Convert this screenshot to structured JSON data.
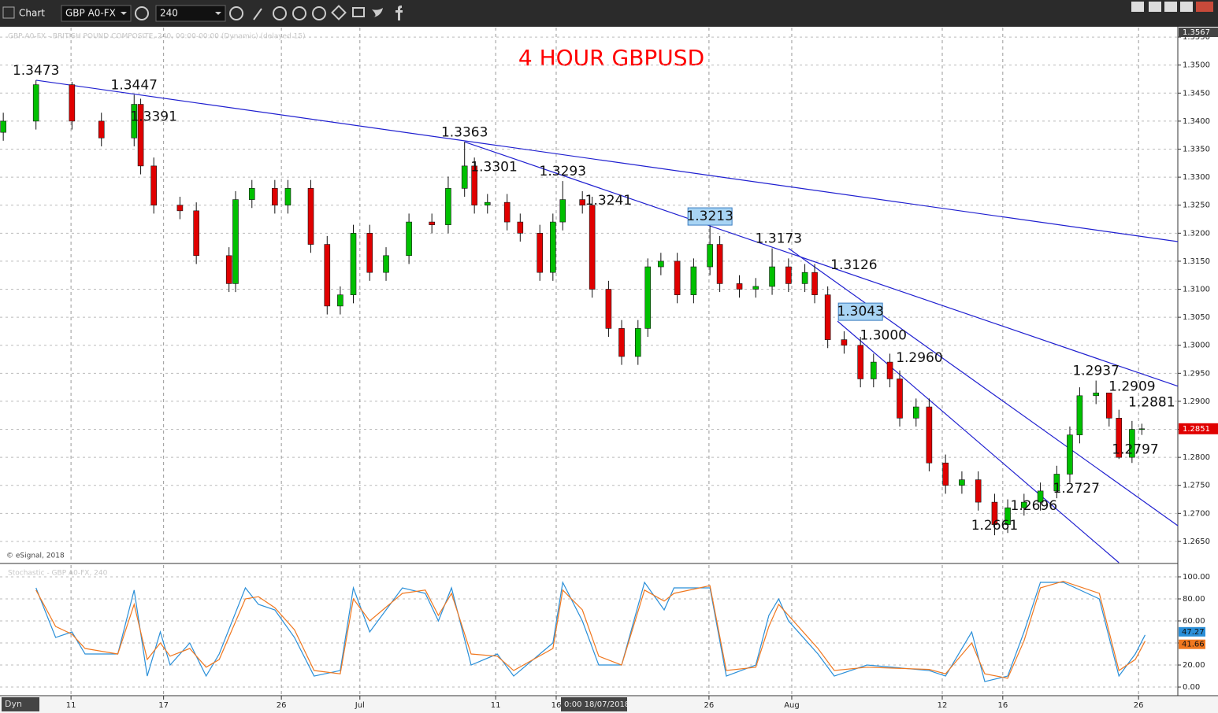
{
  "toolbar": {
    "app": "Chart",
    "symbol": "GBP A0-FX",
    "interval": "240",
    "status": "Dyn"
  },
  "crosshair_label": "0:00 18/07/2018",
  "chart_data": [
    {
      "type": "candlestick",
      "title": "4 HOUR GBPUSD",
      "legend_text": "GBP A0-FX - BRITISH POUND COMPOSITE, 240, 00:00-00:00 (Dynamic) (delayed 15)",
      "copyright": "© eSignal, 2018",
      "up_color": "#00c000",
      "down_color": "#e00000",
      "x": [
        1,
        11,
        22,
        31,
        41,
        43,
        47,
        55,
        60,
        70,
        72,
        77,
        84,
        88,
        95,
        100,
        104,
        108,
        113,
        118,
        125,
        132,
        137,
        142,
        145,
        149,
        155,
        159,
        165,
        169,
        172,
        178,
        181,
        186,
        190,
        195,
        198,
        202,
        207,
        212,
        217,
        220,
        226,
        231,
        236,
        241,
        246,
        249,
        253,
        258,
        263,
        267,
        272,
        275,
        280,
        284,
        289,
        294,
        299,
        304,
        308,
        313,
        318,
        323,
        327,
        330,
        335,
        339,
        342,
        346,
        349
      ],
      "open": [
        1.338,
        1.34,
        1.3465,
        1.34,
        1.337,
        1.343,
        1.332,
        1.325,
        1.324,
        1.316,
        1.311,
        1.326,
        1.328,
        1.325,
        1.328,
        1.318,
        1.307,
        1.309,
        1.32,
        1.313,
        1.316,
        1.322,
        1.3215,
        1.328,
        1.332,
        1.325,
        1.3255,
        1.322,
        1.32,
        1.313,
        1.322,
        1.326,
        1.325,
        1.31,
        1.303,
        1.298,
        1.303,
        1.314,
        1.315,
        1.309,
        1.314,
        1.318,
        1.311,
        1.31,
        1.3105,
        1.314,
        1.311,
        1.313,
        1.309,
        1.301,
        1.3,
        1.294,
        1.297,
        1.294,
        1.287,
        1.289,
        1.279,
        1.275,
        1.276,
        1.272,
        1.268,
        1.271,
        1.272,
        1.274,
        1.277,
        1.284,
        1.291,
        1.2915,
        1.287,
        1.28,
        1.285
      ],
      "high": [
        1.3415,
        1.3473,
        1.347,
        1.3415,
        1.3447,
        1.344,
        1.3335,
        1.3265,
        1.3255,
        1.3175,
        1.3275,
        1.3295,
        1.3295,
        1.3295,
        1.3295,
        1.3195,
        1.3105,
        1.3215,
        1.3215,
        1.3175,
        1.3235,
        1.3235,
        1.3301,
        1.3363,
        1.3335,
        1.327,
        1.327,
        1.3235,
        1.3215,
        1.3235,
        1.3293,
        1.3275,
        1.3265,
        1.3115,
        1.3045,
        1.3045,
        1.3155,
        1.3165,
        1.3165,
        1.3155,
        1.3213,
        1.3195,
        1.3125,
        1.312,
        1.3173,
        1.3155,
        1.3145,
        1.3145,
        1.3105,
        1.3025,
        1.3015,
        1.2985,
        1.2985,
        1.2955,
        1.2905,
        1.2905,
        1.2805,
        1.2775,
        1.2775,
        1.2735,
        1.2725,
        1.2735,
        1.2755,
        1.2785,
        1.2855,
        1.2925,
        1.2937,
        1.2909,
        1.2885,
        1.2865,
        1.286
      ],
      "low": [
        1.3365,
        1.3385,
        1.3385,
        1.3355,
        1.3355,
        1.3305,
        1.3235,
        1.3225,
        1.3145,
        1.3095,
        1.3095,
        1.3245,
        1.3235,
        1.3235,
        1.3165,
        1.3055,
        1.3055,
        1.3075,
        1.3115,
        1.3115,
        1.3145,
        1.32,
        1.32,
        1.3265,
        1.3235,
        1.3235,
        1.3205,
        1.3185,
        1.3115,
        1.3115,
        1.3205,
        1.3235,
        1.3085,
        1.3015,
        1.2965,
        1.2965,
        1.3015,
        1.3125,
        1.3075,
        1.3075,
        1.3125,
        1.3095,
        1.3085,
        1.3085,
        1.309,
        1.3095,
        1.3095,
        1.3075,
        1.2995,
        1.2985,
        1.2925,
        1.2925,
        1.2925,
        1.2855,
        1.2855,
        1.2775,
        1.2735,
        1.2735,
        1.2705,
        1.2661,
        1.2665,
        1.2696,
        1.2705,
        1.2727,
        1.2755,
        1.2825,
        1.2895,
        1.2855,
        1.2797,
        1.279,
        1.284
      ],
      "close": [
        1.34,
        1.3465,
        1.34,
        1.337,
        1.343,
        1.332,
        1.325,
        1.324,
        1.316,
        1.311,
        1.326,
        1.328,
        1.325,
        1.328,
        1.318,
        1.307,
        1.309,
        1.32,
        1.313,
        1.316,
        1.322,
        1.3215,
        1.328,
        1.332,
        1.325,
        1.3255,
        1.322,
        1.32,
        1.313,
        1.322,
        1.326,
        1.325,
        1.31,
        1.303,
        1.298,
        1.303,
        1.314,
        1.315,
        1.309,
        1.314,
        1.318,
        1.311,
        1.31,
        1.3105,
        1.314,
        1.311,
        1.313,
        1.309,
        1.301,
        1.3,
        1.294,
        1.297,
        1.294,
        1.287,
        1.289,
        1.279,
        1.275,
        1.276,
        1.272,
        1.268,
        1.271,
        1.272,
        1.274,
        1.277,
        1.284,
        1.291,
        1.2915,
        1.287,
        1.28,
        1.285,
        1.2851
      ],
      "xlim": [
        0,
        360
      ],
      "ylim": [
        1.2612,
        1.3567
      ],
      "grid": true,
      "yticks": [
        {
          "value": 1.265,
          "label": "1.2650"
        },
        {
          "value": 1.27,
          "label": "1.2700"
        },
        {
          "value": 1.275,
          "label": "1.2750"
        },
        {
          "value": 1.28,
          "label": "1.2800"
        },
        {
          "value": 1.285,
          "label": "1.2850"
        },
        {
          "value": 1.29,
          "label": "1.2900"
        },
        {
          "value": 1.295,
          "label": "1.2950"
        },
        {
          "value": 1.3,
          "label": "1.3000"
        },
        {
          "value": 1.305,
          "label": "1.3050"
        },
        {
          "value": 1.31,
          "label": "1.3100"
        },
        {
          "value": 1.315,
          "label": "1.3150"
        },
        {
          "value": 1.32,
          "label": "1.3200"
        },
        {
          "value": 1.325,
          "label": "1.3250"
        },
        {
          "value": 1.33,
          "label": "1.3300"
        },
        {
          "value": 1.335,
          "label": "1.3350"
        },
        {
          "value": 1.34,
          "label": "1.3400"
        },
        {
          "value": 1.345,
          "label": "1.3450"
        },
        {
          "value": 1.35,
          "label": "1.3500"
        },
        {
          "value": 1.355,
          "label": "1.3550"
        }
      ],
      "xticks": [
        {
          "value": 21.7,
          "label": "11"
        },
        {
          "value": 50,
          "label": "17"
        },
        {
          "value": 86,
          "label": "26"
        },
        {
          "value": 110,
          "label": "Jul"
        },
        {
          "value": 151.5,
          "label": "11"
        },
        {
          "value": 170,
          "label": "16"
        },
        {
          "value": 216.7,
          "label": "26"
        },
        {
          "value": 242,
          "label": "Aug"
        },
        {
          "value": 288,
          "label": "12"
        },
        {
          "value": 306.5,
          "label": "16"
        },
        {
          "value": 348,
          "label": "26"
        }
      ],
      "trendline_color": "#2020d0",
      "trendlines": [
        {
          "x": [
            11,
            360
          ],
          "y": [
            1.3473,
            1.3185
          ]
        },
        {
          "x": [
            142,
            360
          ],
          "y": [
            1.3363,
            1.2927
          ]
        },
        {
          "x": [
            241,
            360
          ],
          "y": [
            1.3173,
            1.2678
          ]
        },
        {
          "x": [
            256,
            342
          ],
          "y": [
            1.3043,
            1.2612
          ]
        }
      ],
      "annotations": [
        {
          "label": "1.3473",
          "value": 1.3473,
          "x": 11
        },
        {
          "label": "1.3447",
          "value": 1.3447,
          "x": 41
        },
        {
          "label": "1.3391",
          "value": 1.3391,
          "x": 47
        },
        {
          "label": "1.3363",
          "value": 1.3363,
          "x": 142
        },
        {
          "label": "1.3301",
          "value": 1.3301,
          "x": 151
        },
        {
          "label": "1.3293",
          "value": 1.3293,
          "x": 172
        },
        {
          "label": "1.3241",
          "value": 1.3241,
          "x": 186
        },
        {
          "label": "1.3213",
          "value": 1.3213,
          "x": 217,
          "boxed": true
        },
        {
          "label": "1.3173",
          "value": 1.3173,
          "x": 238
        },
        {
          "label": "1.3126",
          "value": 1.3126,
          "x": 261
        },
        {
          "label": "1.3043",
          "value": 1.3043,
          "x": 263,
          "boxed": true
        },
        {
          "label": "1.3000",
          "value": 1.3,
          "x": 270
        },
        {
          "label": "1.2960",
          "value": 1.296,
          "x": 281
        },
        {
          "label": "1.2937",
          "value": 1.2937,
          "x": 335
        },
        {
          "label": "1.2909",
          "value": 1.2909,
          "x": 346
        },
        {
          "label": "1.2881",
          "value": 1.2881,
          "x": 352
        },
        {
          "label": "1.2797",
          "value": 1.2797,
          "x": 347
        },
        {
          "label": "1.2727",
          "value": 1.2727,
          "x": 329
        },
        {
          "label": "1.2696",
          "value": 1.2696,
          "x": 316
        },
        {
          "label": "1.2661",
          "value": 1.2661,
          "x": 304
        }
      ]
    },
    {
      "type": "line",
      "title": "Stochastic - GBP A0-FX, 240",
      "x": [
        11,
        17,
        22,
        26,
        36,
        41,
        45,
        49,
        52,
        58,
        63,
        67,
        75,
        79,
        84,
        90,
        96,
        104,
        108,
        113,
        123,
        130,
        134,
        138,
        144,
        152,
        157,
        169,
        172,
        178,
        183,
        190,
        197,
        203,
        206,
        217,
        222,
        231,
        235,
        238,
        241,
        250,
        255,
        265,
        284,
        289,
        297,
        301,
        308,
        313,
        318,
        325,
        336,
        342,
        347,
        350
      ],
      "series": [
        {
          "color": "#2a8fd8",
          "values": [
            90,
            45,
            50,
            30,
            30,
            88,
            10,
            50,
            20,
            40,
            10,
            30,
            90,
            75,
            70,
            45,
            10,
            15,
            90,
            50,
            90,
            85,
            60,
            90,
            20,
            30,
            10,
            40,
            95,
            60,
            20,
            20,
            95,
            70,
            90,
            90,
            10,
            20,
            65,
            80,
            60,
            30,
            10,
            20,
            15,
            10,
            50,
            5,
            10,
            50,
            95,
            95,
            80,
            10,
            30,
            47.27
          ]
        },
        {
          "color": "#f07820",
          "values": [
            88,
            55,
            48,
            35,
            30,
            75,
            25,
            40,
            28,
            35,
            18,
            25,
            80,
            82,
            72,
            52,
            15,
            12,
            80,
            60,
            85,
            88,
            65,
            85,
            30,
            28,
            15,
            35,
            88,
            70,
            28,
            20,
            88,
            78,
            85,
            92,
            15,
            18,
            55,
            75,
            65,
            35,
            15,
            18,
            16,
            12,
            40,
            12,
            8,
            42,
            90,
            96,
            85,
            15,
            25,
            41.66
          ]
        }
      ],
      "xlim": [
        0,
        360
      ],
      "ylim": [
        -6.4,
        110.7
      ],
      "grid": true,
      "yticks": [
        {
          "value": 0,
          "label": "0.00"
        },
        {
          "value": 20,
          "label": "20.00"
        },
        {
          "value": 40,
          "label": "40.00"
        },
        {
          "value": 60,
          "label": "60.00"
        },
        {
          "value": 80,
          "label": "80.00"
        },
        {
          "value": 100,
          "label": "100.00"
        }
      ]
    }
  ]
}
